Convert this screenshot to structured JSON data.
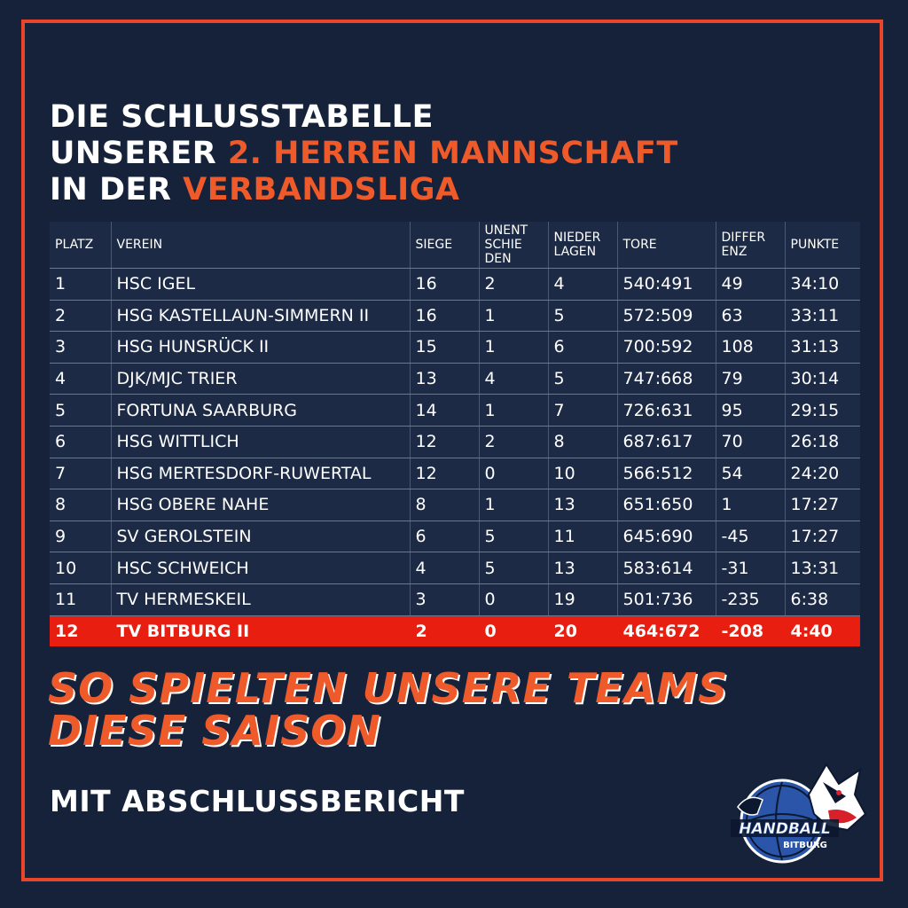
{
  "headline": {
    "line1": "DIE SCHLUSSTABELLE",
    "line2_prefix": "UNSERER ",
    "line2_accent": "2. HERREN MANNSCHAFT",
    "line3_prefix": "IN DER ",
    "line3_accent": "VERBANDSLIGA"
  },
  "table": {
    "headers": {
      "platz": "PLATZ",
      "verein": "VEREIN",
      "siege": "SIEGE",
      "unentschieden_1": "UNENT",
      "unentschieden_2": "SCHIE",
      "unentschieden_3": "DEN",
      "niederlagen_1": "NIEDER",
      "niederlagen_2": "LAGEN",
      "tore": "TORE",
      "differenz_1": "DIFFER",
      "differenz_2": "ENZ",
      "punkte": "PUNKTE"
    },
    "rows": [
      {
        "platz": "1",
        "verein": "HSC IGEL",
        "siege": "16",
        "unentschieden": "2",
        "niederlagen": "4",
        "tore": "540:491",
        "differenz": "49",
        "punkte": "34:10"
      },
      {
        "platz": "2",
        "verein": "HSG KASTELLAUN-SIMMERN II",
        "siege": "16",
        "unentschieden": "1",
        "niederlagen": "5",
        "tore": "572:509",
        "differenz": "63",
        "punkte": "33:11"
      },
      {
        "platz": "3",
        "verein": "HSG HUNSRÜCK II",
        "siege": "15",
        "unentschieden": "1",
        "niederlagen": "6",
        "tore": "700:592",
        "differenz": "108",
        "punkte": "31:13"
      },
      {
        "platz": "4",
        "verein": "DJK/MJC TRIER",
        "siege": "13",
        "unentschieden": "4",
        "niederlagen": "5",
        "tore": "747:668",
        "differenz": "79",
        "punkte": "30:14"
      },
      {
        "platz": "5",
        "verein": "FORTUNA SAARBURG",
        "siege": "14",
        "unentschieden": "1",
        "niederlagen": "7",
        "tore": "726:631",
        "differenz": "95",
        "punkte": "29:15"
      },
      {
        "platz": "6",
        "verein": "HSG WITTLICH",
        "siege": "12",
        "unentschieden": "2",
        "niederlagen": "8",
        "tore": "687:617",
        "differenz": "70",
        "punkte": "26:18"
      },
      {
        "platz": "7",
        "verein": "HSG MERTESDORF-RUWERTAL",
        "siege": "12",
        "unentschieden": "0",
        "niederlagen": "10",
        "tore": "566:512",
        "differenz": "54",
        "punkte": "24:20"
      },
      {
        "platz": "8",
        "verein": "HSG OBERE NAHE",
        "siege": "8",
        "unentschieden": "1",
        "niederlagen": "13",
        "tore": "651:650",
        "differenz": "1",
        "punkte": "17:27"
      },
      {
        "platz": "9",
        "verein": "SV GEROLSTEIN",
        "siege": "6",
        "unentschieden": "5",
        "niederlagen": "11",
        "tore": "645:690",
        "differenz": "-45",
        "punkte": "17:27"
      },
      {
        "platz": "10",
        "verein": "HSC SCHWEICH",
        "siege": "4",
        "unentschieden": "5",
        "niederlagen": "13",
        "tore": "583:614",
        "differenz": "-31",
        "punkte": "13:31"
      },
      {
        "platz": "11",
        "verein": "TV HERMESKEIL",
        "siege": "3",
        "unentschieden": "0",
        "niederlagen": "19",
        "tore": "501:736",
        "differenz": "-235",
        "punkte": "6:38"
      },
      {
        "platz": "12",
        "verein": "TV BITBURG II",
        "siege": "2",
        "unentschieden": "0",
        "niederlagen": "20",
        "tore": "464:672",
        "differenz": "-208",
        "punkte": "4:40"
      }
    ]
  },
  "subheadline": {
    "line1": "SO SPIELTEN UNSERE TEAMS",
    "line2": "DIESE SAISON"
  },
  "cta": "MIT ABSCHLUSSBERICHT",
  "logo": {
    "icon": "badger-handball-logo",
    "word1": "HANDBALL",
    "word2": "BITBURG"
  },
  "colors": {
    "background": "#16223a",
    "accent": "#ee5a2a",
    "frame": "#e8452a",
    "highlight_row": "#e81e10"
  }
}
